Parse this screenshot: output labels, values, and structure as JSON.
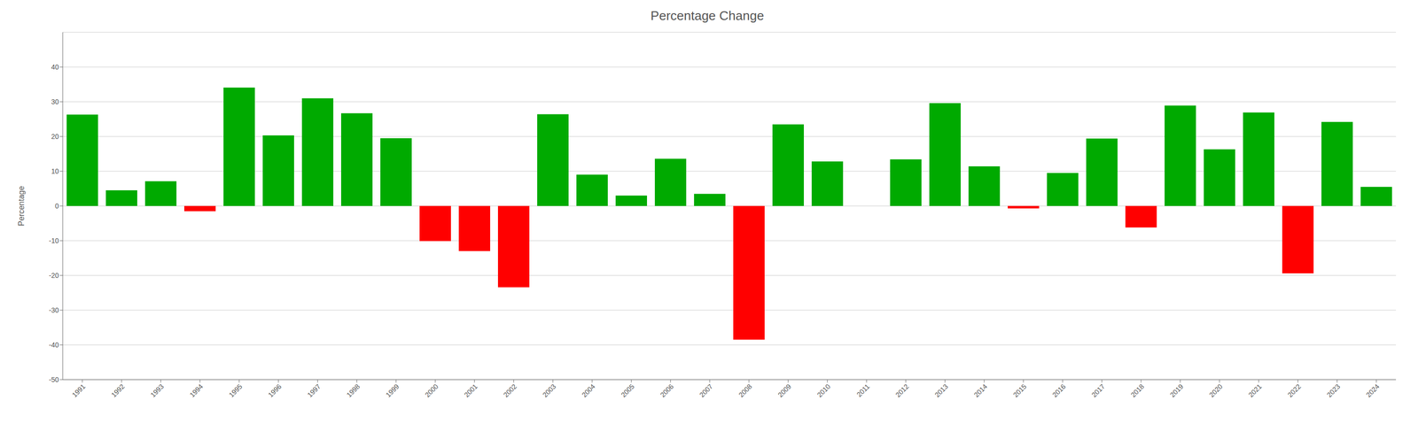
{
  "chart_data": {
    "type": "bar",
    "title": "Percentage Change",
    "y_label": "Percentage",
    "categories": [
      "1991",
      "1992",
      "1993",
      "1994",
      "1995",
      "1996",
      "1997",
      "1998",
      "1999",
      "2000",
      "2001",
      "2002",
      "2003",
      "2004",
      "2005",
      "2006",
      "2007",
      "2008",
      "2009",
      "2010",
      "2011",
      "2012",
      "2013",
      "2014",
      "2015",
      "2016",
      "2017",
      "2018",
      "2019",
      "2020",
      "2021",
      "2022",
      "2023",
      "2024"
    ],
    "values": [
      26.3,
      4.5,
      7.1,
      -1.5,
      34.1,
      20.3,
      31.0,
      26.7,
      19.5,
      -10.1,
      -13.0,
      -23.4,
      26.4,
      9.0,
      3.0,
      13.6,
      3.5,
      -38.5,
      23.5,
      12.8,
      0.0,
      13.4,
      29.6,
      11.4,
      -0.7,
      9.5,
      19.4,
      -6.2,
      28.9,
      16.3,
      26.9,
      -19.4,
      24.2,
      5.5
    ],
    "colors": [
      "#00aa00",
      "#00aa00",
      "#00aa00",
      "#ff0000",
      "#00aa00",
      "#00aa00",
      "#00aa00",
      "#00aa00",
      "#00aa00",
      "#ff0000",
      "#ff0000",
      "#ff0000",
      "#00aa00",
      "#00aa00",
      "#00aa00",
      "#00aa00",
      "#00aa00",
      "#ff0000",
      "#00aa00",
      "#00aa00",
      "#00aa00",
      "#00aa00",
      "#00aa00",
      "#00aa00",
      "#ff0000",
      "#00aa00",
      "#00aa00",
      "#ff0000",
      "#00aa00",
      "#00aa00",
      "#00aa00",
      "#ff0000",
      "#00aa00",
      "#00aa00"
    ],
    "ylim": [
      -50,
      50
    ],
    "yticks": [
      -50,
      -40,
      -30,
      -20,
      -10,
      0,
      10,
      20,
      30,
      40
    ],
    "grid": true
  }
}
